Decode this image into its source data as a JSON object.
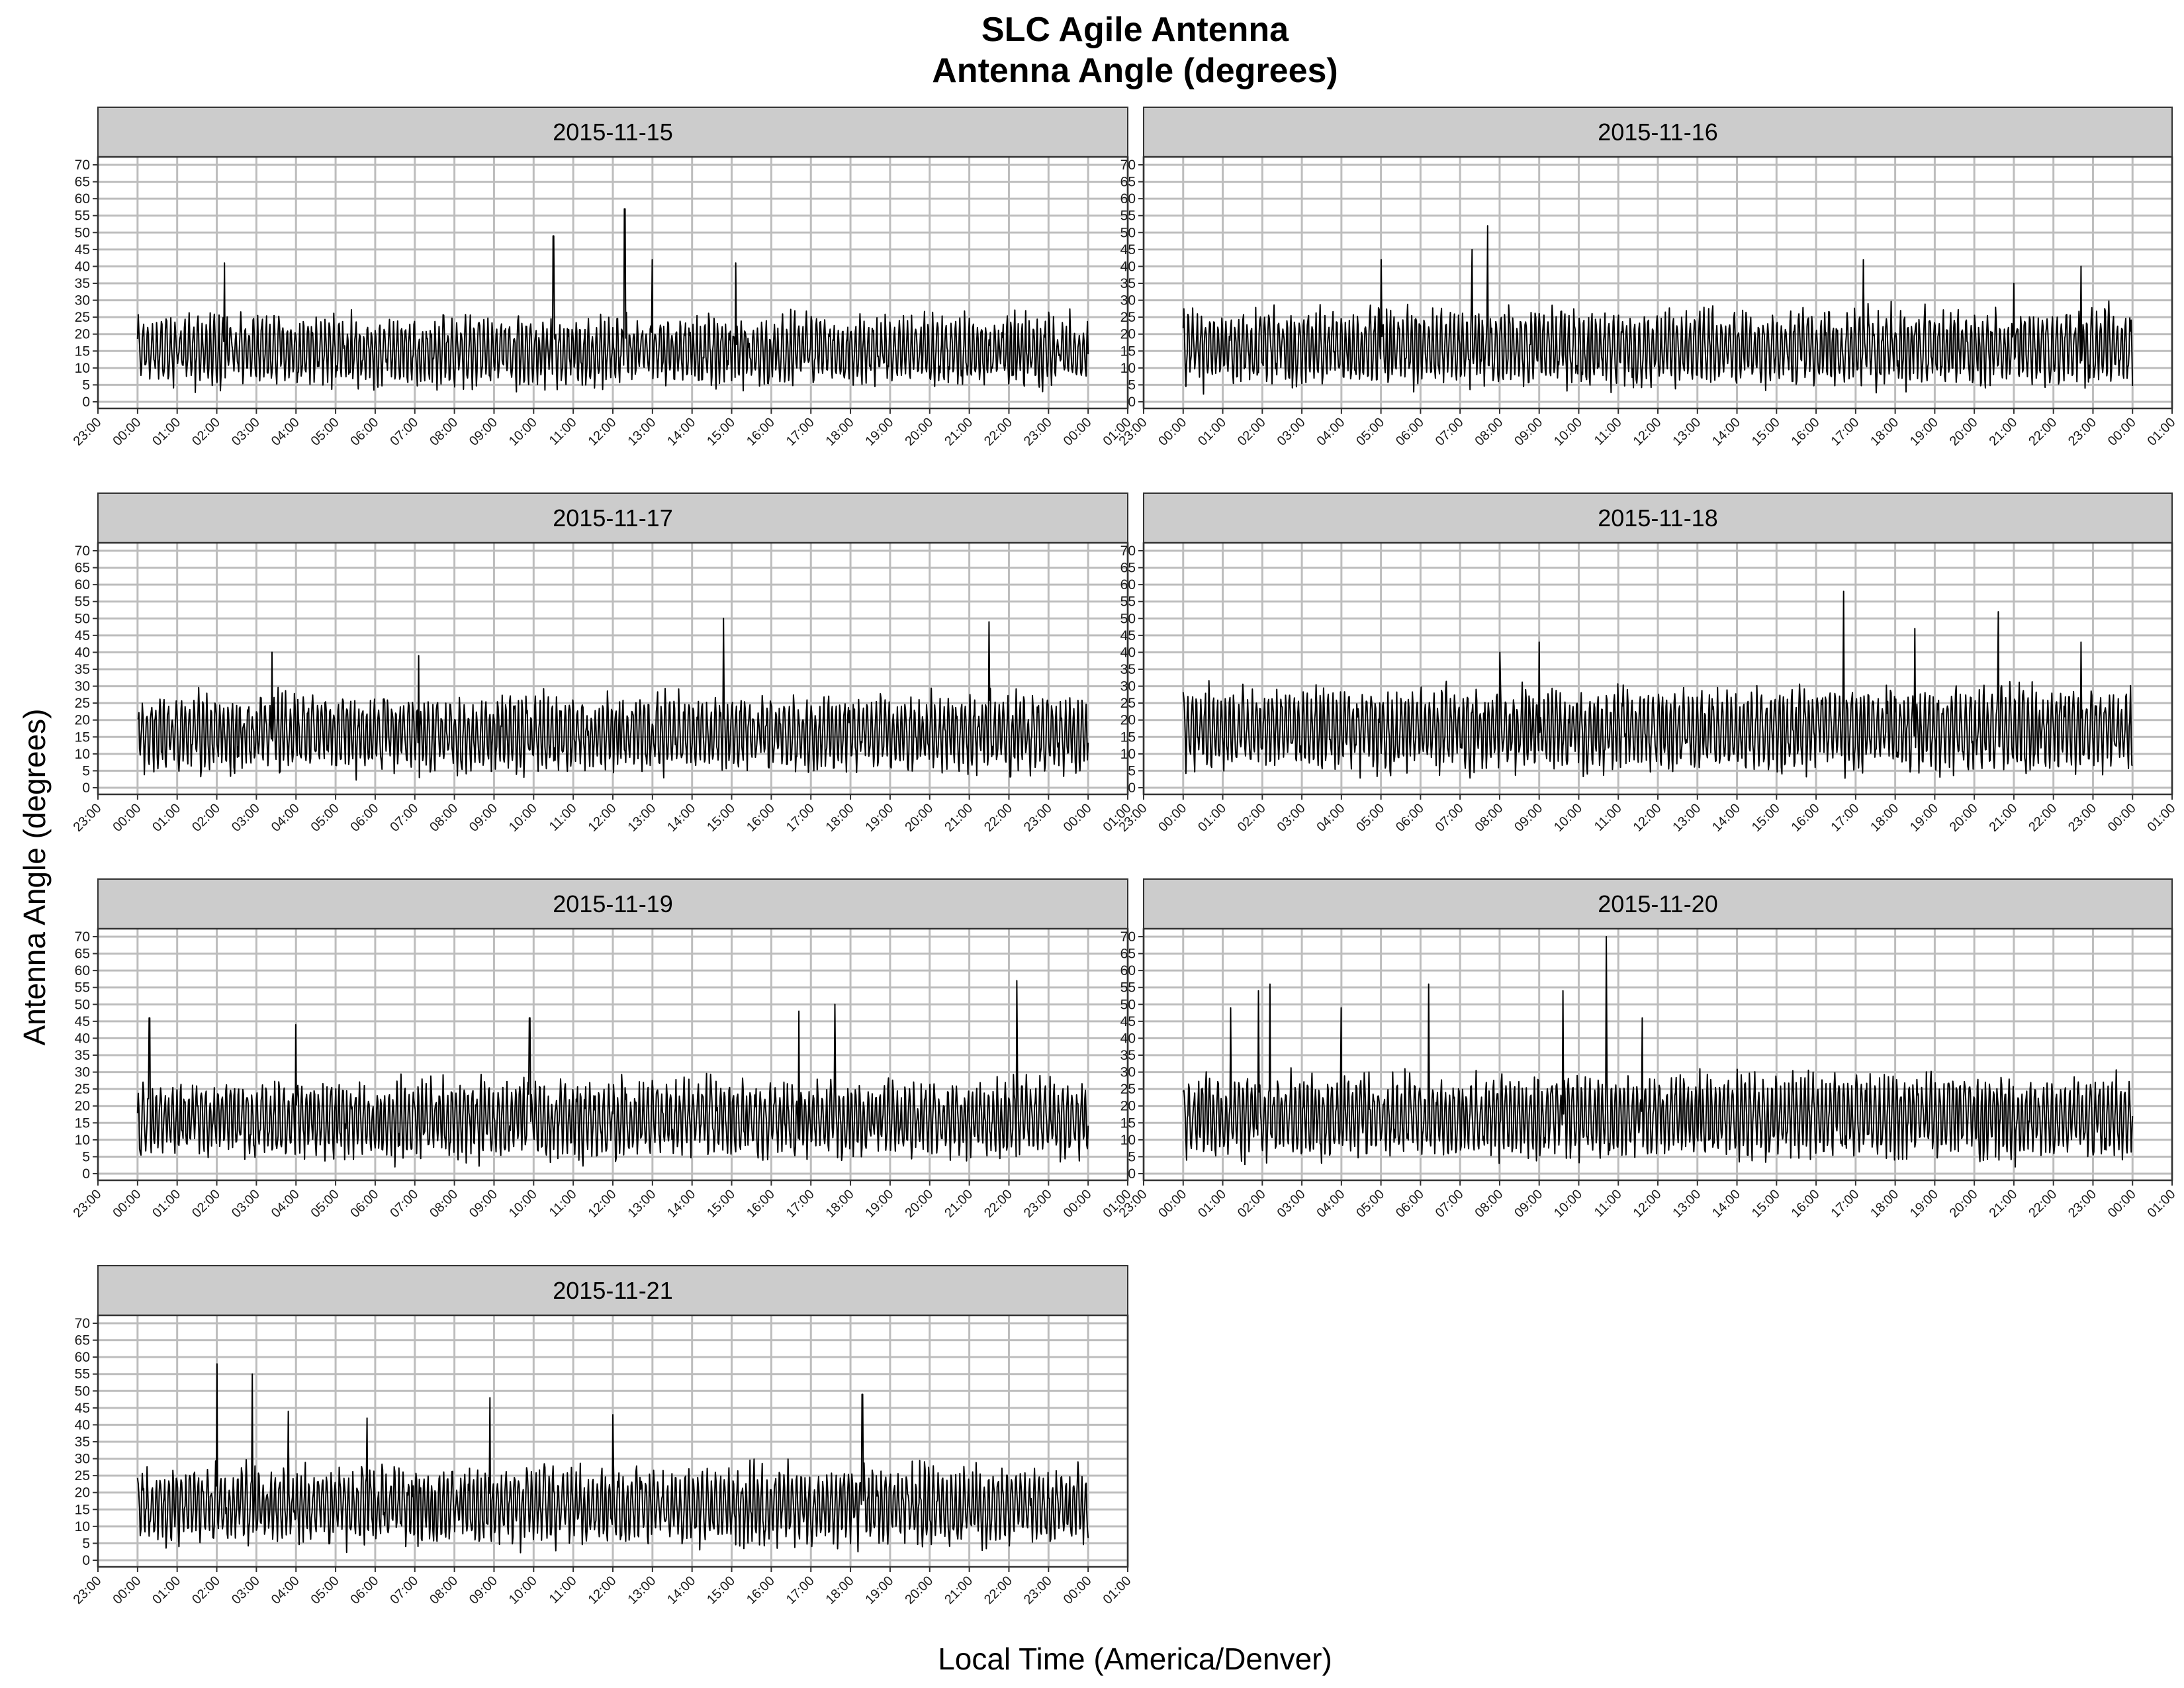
{
  "chart_data": {
    "type": "line",
    "title": "SLC Agile Antenna",
    "subtitle": "Antenna Angle (degrees)",
    "xlabel": "Local Time (America/Denver)",
    "ylabel": "Antenna Angle (degrees)",
    "ylim": [
      0,
      70
    ],
    "yticks": [
      0,
      5,
      10,
      15,
      20,
      25,
      30,
      35,
      40,
      45,
      50,
      55,
      60,
      65,
      70
    ],
    "xticks": [
      "23:00",
      "00:00",
      "01:00",
      "02:00",
      "03:00",
      "04:00",
      "05:00",
      "06:00",
      "07:00",
      "08:00",
      "09:00",
      "10:00",
      "11:00",
      "12:00",
      "13:00",
      "14:00",
      "15:00",
      "16:00",
      "17:00",
      "18:00",
      "19:00",
      "20:00",
      "21:00",
      "22:00",
      "23:00",
      "00:00",
      "01:00"
    ],
    "grid": true,
    "legend": "none",
    "line_color": "#000000",
    "strip_color": "#cccccc",
    "panels": [
      {
        "label": "2015-11-15",
        "base": 15,
        "amp": 9,
        "peaks": [
          [
            2.2,
            41
          ],
          [
            10.5,
            49
          ],
          [
            12.3,
            57
          ],
          [
            13.0,
            42
          ],
          [
            15.1,
            41
          ]
        ],
        "seed": 11
      },
      {
        "label": "2015-11-16",
        "base": 16,
        "amp": 10,
        "peaks": [
          [
            5.0,
            42
          ],
          [
            7.3,
            45
          ],
          [
            7.7,
            52
          ],
          [
            17.2,
            42
          ],
          [
            21.0,
            35
          ],
          [
            22.7,
            40
          ]
        ],
        "seed": 23
      },
      {
        "label": "2015-11-17",
        "base": 16,
        "amp": 10,
        "peaks": [
          [
            3.4,
            40
          ],
          [
            14.8,
            50
          ],
          [
            21.5,
            49
          ],
          [
            7.1,
            39
          ]
        ],
        "seed": 37
      },
      {
        "label": "2015-11-18",
        "base": 17,
        "amp": 11,
        "peaks": [
          [
            9.0,
            43
          ],
          [
            16.7,
            58
          ],
          [
            18.5,
            47
          ],
          [
            20.6,
            52
          ],
          [
            22.7,
            43
          ],
          [
            8.0,
            40
          ]
        ],
        "seed": 41
      },
      {
        "label": "2015-11-19",
        "base": 16,
        "amp": 10,
        "peaks": [
          [
            0.3,
            46
          ],
          [
            4.0,
            44
          ],
          [
            9.9,
            46
          ],
          [
            16.7,
            48
          ],
          [
            17.6,
            50
          ],
          [
            22.2,
            57
          ]
        ],
        "seed": 53
      },
      {
        "label": "2015-11-20",
        "base": 17,
        "amp": 11,
        "peaks": [
          [
            1.2,
            49
          ],
          [
            1.9,
            54
          ],
          [
            2.2,
            56
          ],
          [
            6.2,
            56
          ],
          [
            9.6,
            54
          ],
          [
            10.7,
            70
          ],
          [
            11.6,
            46
          ],
          [
            4.0,
            49
          ]
        ],
        "seed": 67
      },
      {
        "label": "2015-11-21",
        "base": 16,
        "amp": 10,
        "peaks": [
          [
            2.0,
            58
          ],
          [
            2.9,
            55
          ],
          [
            3.8,
            44
          ],
          [
            5.8,
            42
          ],
          [
            8.9,
            48
          ],
          [
            18.3,
            49
          ],
          [
            12.0,
            43
          ]
        ],
        "seed": 79
      }
    ]
  }
}
